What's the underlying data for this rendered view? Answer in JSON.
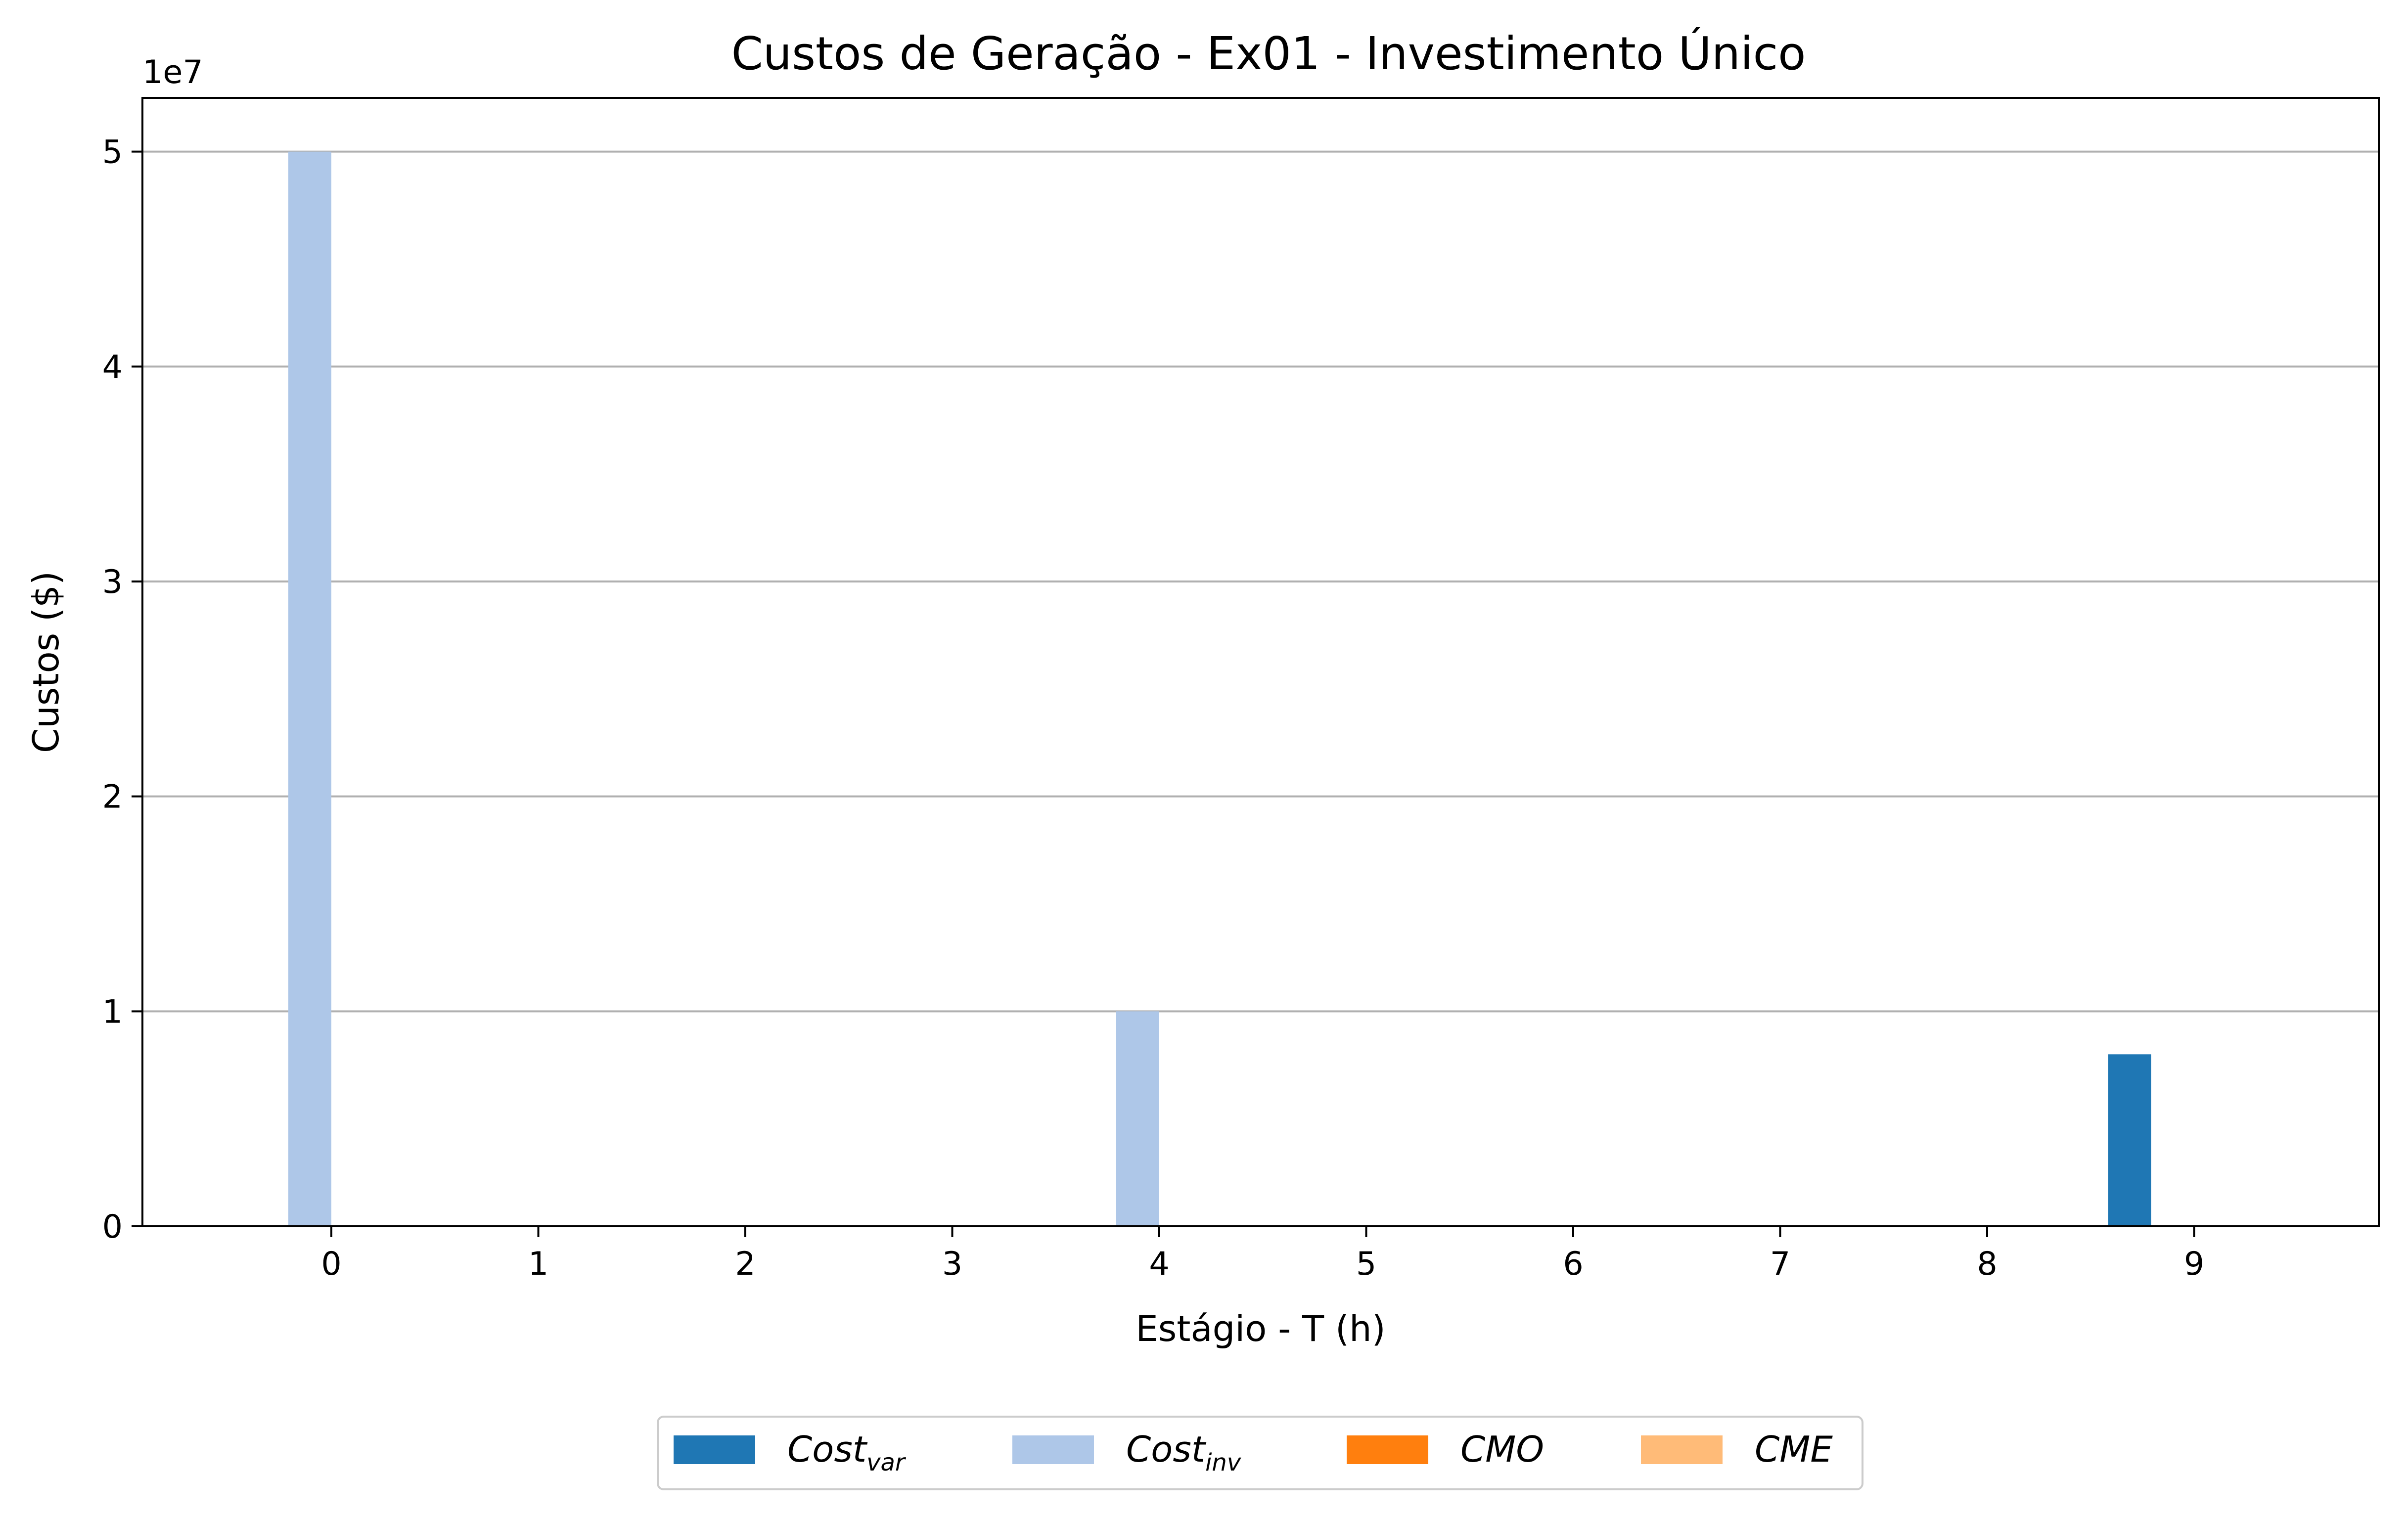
{
  "chart_data": {
    "type": "bar",
    "title": "Custos de Geração - Ex01 - Investimento Único",
    "xlabel": "Estágio - T (h)",
    "ylabel": "Custos ($)",
    "y_offset_text": "1e7",
    "y_scale": 10000000,
    "categories": [
      "0",
      "1",
      "2",
      "3",
      "4",
      "5",
      "6",
      "7",
      "8",
      "9"
    ],
    "ylim": [
      0,
      52500000
    ],
    "yticks": [
      0,
      10000000,
      20000000,
      30000000,
      40000000,
      50000000
    ],
    "ytick_labels": [
      "0",
      "1",
      "2",
      "3",
      "4",
      "5"
    ],
    "grid": "y",
    "legend_position": "bottom-center",
    "series": [
      {
        "name": "Cost",
        "subscript": "var",
        "color": "#1f77b4",
        "values": [
          0,
          0,
          0,
          0,
          0,
          0,
          0,
          0,
          0,
          8000000
        ]
      },
      {
        "name": "Cost",
        "subscript": "inv",
        "color": "#aec7e8",
        "values": [
          50000000,
          0,
          0,
          0,
          10000000,
          0,
          0,
          0,
          0,
          0
        ]
      },
      {
        "name": "CMO",
        "subscript": "",
        "color": "#ff7f0e",
        "values": [
          0,
          0,
          0,
          0,
          0,
          0,
          0,
          0,
          0,
          0
        ]
      },
      {
        "name": "CME",
        "subscript": "",
        "color": "#ffbb78",
        "values": [
          0,
          0,
          0,
          0,
          0,
          0,
          0,
          0,
          0,
          0
        ]
      }
    ]
  }
}
